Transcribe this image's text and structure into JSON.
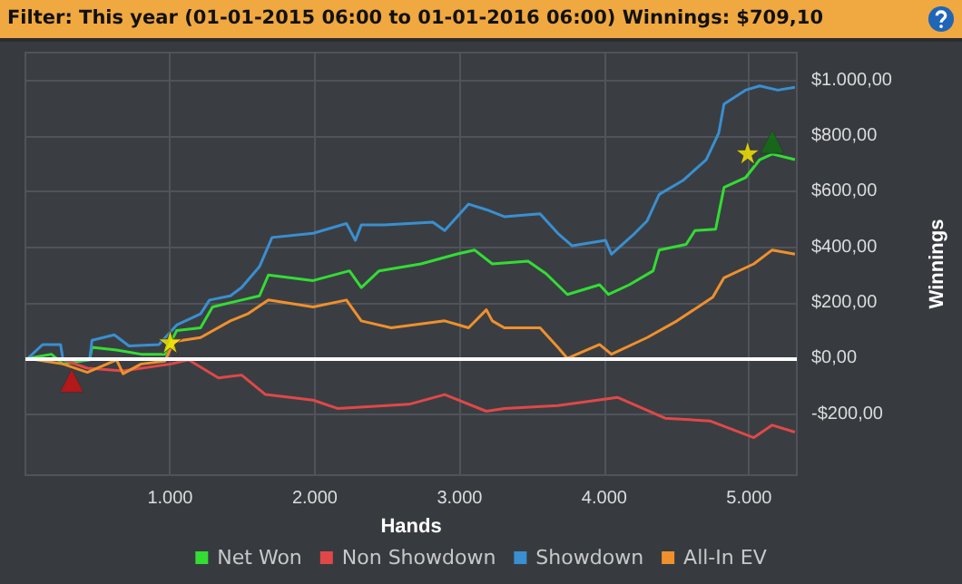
{
  "chart_data": {
    "type": "line",
    "title": "Filter: This year (01-01-2015 06:00 to 01-01-2016 06:00)  Winnings: $709,10",
    "xlabel": "Hands",
    "ylabel": "Winnings",
    "xlim": [
      0,
      5330
    ],
    "ylim": [
      -420,
      1100
    ],
    "xticks": [
      {
        "value": 1000,
        "label": "1.000"
      },
      {
        "value": 2000,
        "label": "2.000"
      },
      {
        "value": 3000,
        "label": "3.000"
      },
      {
        "value": 4000,
        "label": "4.000"
      },
      {
        "value": 5000,
        "label": "5.000"
      }
    ],
    "yticks": [
      {
        "value": -200,
        "label": "-$200,00"
      },
      {
        "value": 0,
        "label": "$0,00"
      },
      {
        "value": 200,
        "label": "$200,00"
      },
      {
        "value": 400,
        "label": "$400,00"
      },
      {
        "value": 600,
        "label": "$600,00"
      },
      {
        "value": 800,
        "label": "$800,00"
      },
      {
        "value": 1000,
        "label": "$1.000,00"
      }
    ],
    "grid": true,
    "legend": "bottom",
    "marker": "none",
    "line_style": "solid",
    "ref_lines": [
      {
        "axis": "y",
        "value": 0,
        "color": "#ffffff"
      }
    ],
    "series": [
      {
        "name": "Net Won",
        "color": "#33dd33",
        "x": [
          16,
          180,
          260,
          444,
          460,
          630,
          800,
          963,
          1045,
          1210,
          1293,
          1494,
          1617,
          1679,
          1988,
          2239,
          2321,
          2444,
          2733,
          2979,
          3103,
          3226,
          3473,
          3597,
          3745,
          3967,
          4029,
          4173,
          4337,
          4379,
          4565,
          4626,
          4769,
          4827,
          4975,
          5074,
          5160,
          5317
        ],
        "values": [
          0,
          15,
          -20,
          -5,
          40,
          30,
          15,
          15,
          100,
          110,
          185,
          210,
          225,
          300,
          280,
          315,
          255,
          315,
          340,
          375,
          390,
          340,
          350,
          305,
          230,
          265,
          230,
          265,
          315,
          390,
          410,
          460,
          465,
          615,
          650,
          715,
          735,
          715
        ]
      },
      {
        "name": "Non Showdown",
        "color": "#e04848",
        "x": [
          16,
          260,
          428,
          675,
          1005,
          1127,
          1334,
          1494,
          1659,
          1988,
          2156,
          2650,
          2897,
          3185,
          3309,
          3679,
          4090,
          4420,
          4729,
          5033,
          5160,
          5317
        ],
        "values": [
          0,
          -5,
          -35,
          -45,
          -20,
          -5,
          -70,
          -60,
          -130,
          -150,
          -180,
          -165,
          -130,
          -190,
          -180,
          -170,
          -140,
          -215,
          -225,
          -285,
          -240,
          -265
        ]
      },
      {
        "name": "Showdown",
        "color": "#3a8fd0",
        "x": [
          16,
          120,
          243,
          260,
          444,
          460,
          614,
          716,
          922,
          1045,
          1210,
          1272,
          1416,
          1494,
          1617,
          1704,
          1988,
          2218,
          2280,
          2321,
          2481,
          2815,
          2897,
          3062,
          3185,
          3309,
          3556,
          3679,
          3778,
          4008,
          4049,
          4210,
          4296,
          4379,
          4543,
          4704,
          4790,
          4827,
          4975,
          5074,
          5198,
          5317
        ],
        "values": [
          0,
          50,
          50,
          -5,
          -5,
          65,
          85,
          45,
          50,
          120,
          160,
          210,
          225,
          255,
          330,
          435,
          450,
          485,
          425,
          480,
          480,
          490,
          460,
          555,
          535,
          510,
          520,
          450,
          405,
          425,
          375,
          450,
          495,
          590,
          640,
          715,
          810,
          915,
          965,
          980,
          965,
          975
        ]
      },
      {
        "name": "All-In EV",
        "color": "#f0902c",
        "x": [
          16,
          260,
          428,
          630,
          675,
          800,
          963,
          1025,
          1210,
          1416,
          1535,
          1679,
          1988,
          2218,
          2321,
          2527,
          2897,
          3062,
          3185,
          3226,
          3309,
          3556,
          3679,
          3745,
          3967,
          4049,
          4296,
          4502,
          4749,
          4827,
          5033,
          5160,
          5317
        ],
        "values": [
          0,
          -20,
          -50,
          -5,
          -55,
          -20,
          -10,
          60,
          75,
          135,
          160,
          210,
          185,
          210,
          135,
          110,
          135,
          110,
          175,
          135,
          110,
          110,
          40,
          0,
          50,
          15,
          75,
          135,
          220,
          290,
          340,
          390,
          375
        ]
      },
      {
        "type": "scatter",
        "marker": "triangle",
        "color": "#d01010",
        "x": [
          320
        ],
        "values": [
          -80
        ]
      },
      {
        "type": "scatter",
        "marker": "star",
        "color": "#ffee00",
        "x": [
          1000,
          4990
        ],
        "values": [
          60,
          740
        ]
      },
      {
        "type": "scatter",
        "marker": "triangle",
        "color": "#107010",
        "x": [
          5160
        ],
        "values": [
          780
        ]
      }
    ]
  }
}
